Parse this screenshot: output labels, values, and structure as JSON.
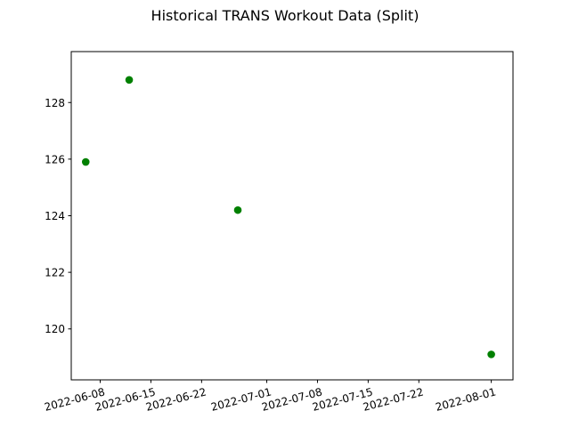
{
  "chart_data": {
    "type": "scatter",
    "title": "Historical TRANS Workout Data (Split)",
    "xlabel": "",
    "ylabel": "",
    "x_tick_labels": [
      "2022-06-08",
      "2022-06-15",
      "2022-06-22",
      "2022-07-01",
      "2022-07-08",
      "2022-07-15",
      "2022-07-22",
      "2022-08-01"
    ],
    "x_tick_dates": [
      "2022-06-08",
      "2022-06-15",
      "2022-06-22",
      "2022-07-01",
      "2022-07-08",
      "2022-07-15",
      "2022-07-22",
      "2022-08-01"
    ],
    "y_tick_labels": [
      "120",
      "122",
      "124",
      "126",
      "128"
    ],
    "y_ticks": [
      120,
      122,
      124,
      126,
      128
    ],
    "xlim": [
      "2022-06-04",
      "2022-08-04"
    ],
    "ylim": [
      118.2,
      129.8
    ],
    "grid": false,
    "marker_color": "#008000",
    "points": [
      {
        "x": "2022-06-06",
        "y": 125.9
      },
      {
        "x": "2022-06-12",
        "y": 128.8
      },
      {
        "x": "2022-06-27",
        "y": 124.2
      },
      {
        "x": "2022-08-01",
        "y": 119.1
      }
    ]
  }
}
